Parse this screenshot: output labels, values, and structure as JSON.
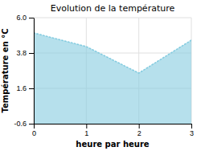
{
  "chart_data": {
    "type": "area",
    "title": "Evolution de la température",
    "xlabel": "heure par heure",
    "ylabel": "Température en °C",
    "x": [
      0,
      1,
      2,
      3
    ],
    "y": [
      5.05,
      4.2,
      2.55,
      4.6
    ],
    "xlim": [
      0,
      3
    ],
    "ylim": [
      -0.6,
      6.0
    ],
    "xticks": [
      0,
      1,
      2,
      3
    ],
    "yticks": [
      -0.6,
      1.6,
      3.8,
      {
        "value": 6.0,
        "label": "6.0"
      }
    ],
    "color": "#85cce0",
    "line_style": "dotted",
    "grid": true
  }
}
